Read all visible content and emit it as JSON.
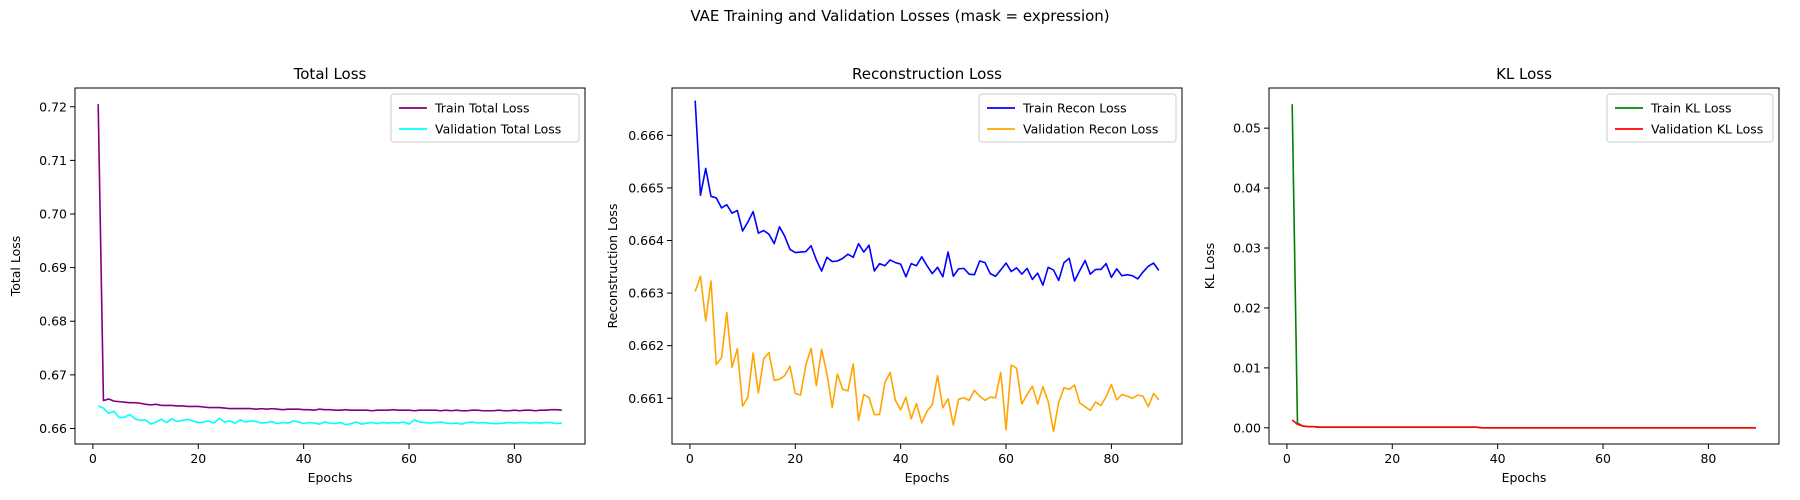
{
  "figure": {
    "suptitle": "VAE Training and Validation Losses (mask = expression)"
  },
  "chart_data": [
    {
      "type": "line",
      "title": "Total Loss",
      "xlabel": "Epochs",
      "ylabel": "Total Loss",
      "xlim": [
        -3.4,
        93.4
      ],
      "ylim": [
        0.6571,
        0.7235
      ],
      "xticks": [
        0,
        20,
        40,
        60,
        80
      ],
      "yticks": [
        0.66,
        0.67,
        0.68,
        0.69,
        0.7,
        0.71,
        0.72
      ],
      "ytick_labels": [
        "0.66",
        "0.67",
        "0.68",
        "0.69",
        "0.70",
        "0.71",
        "0.72"
      ],
      "legend_position": "top-right",
      "series": [
        {
          "name": "Train Total Loss",
          "color": "#800080",
          "x_start": 1,
          "values": [
            0.7205,
            0.6652,
            0.6655,
            0.6651,
            0.665,
            0.6649,
            0.6648,
            0.6648,
            0.6647,
            0.6645,
            0.6644,
            0.6645,
            0.6643,
            0.6643,
            0.6643,
            0.6642,
            0.6642,
            0.6641,
            0.6641,
            0.6641,
            0.664,
            0.6639,
            0.6639,
            0.6639,
            0.6638,
            0.6637,
            0.6637,
            0.6637,
            0.6637,
            0.6637,
            0.6636,
            0.6637,
            0.6636,
            0.6637,
            0.6636,
            0.6635,
            0.6636,
            0.6636,
            0.6636,
            0.6635,
            0.6635,
            0.6634,
            0.6636,
            0.6635,
            0.6635,
            0.6634,
            0.6634,
            0.6635,
            0.6634,
            0.6634,
            0.6634,
            0.6634,
            0.6633,
            0.6634,
            0.6634,
            0.6634,
            0.6635,
            0.6634,
            0.6634,
            0.6634,
            0.6633,
            0.6634,
            0.6634,
            0.6634,
            0.6634,
            0.6633,
            0.6634,
            0.6633,
            0.6634,
            0.6633,
            0.6633,
            0.6634,
            0.6634,
            0.6633,
            0.6633,
            0.6633,
            0.6634,
            0.6633,
            0.6633,
            0.6634,
            0.6633,
            0.6634,
            0.6634,
            0.6633,
            0.6634,
            0.6634,
            0.6635,
            0.6635,
            0.6634
          ]
        },
        {
          "name": "Validation Total Loss",
          "color": "#00ffff",
          "x_start": 1,
          "values": [
            0.6642,
            0.6638,
            0.6628,
            0.6632,
            0.662,
            0.6621,
            0.6626,
            0.6618,
            0.6615,
            0.6616,
            0.6608,
            0.6612,
            0.6617,
            0.6611,
            0.6618,
            0.6613,
            0.6615,
            0.6617,
            0.6614,
            0.6611,
            0.6612,
            0.6614,
            0.661,
            0.6619,
            0.6612,
            0.6614,
            0.661,
            0.6616,
            0.6612,
            0.6614,
            0.6613,
            0.661,
            0.6611,
            0.6613,
            0.6609,
            0.6611,
            0.661,
            0.6614,
            0.6612,
            0.6609,
            0.6611,
            0.661,
            0.6608,
            0.6612,
            0.661,
            0.6609,
            0.6611,
            0.6607,
            0.6609,
            0.6612,
            0.6608,
            0.661,
            0.6611,
            0.6609,
            0.6611,
            0.661,
            0.6611,
            0.661,
            0.6612,
            0.6608,
            0.6616,
            0.6612,
            0.6611,
            0.661,
            0.6611,
            0.6612,
            0.661,
            0.6609,
            0.661,
            0.6608,
            0.6611,
            0.6612,
            0.661,
            0.6611,
            0.661,
            0.6609,
            0.6609,
            0.661,
            0.6611,
            0.661,
            0.6611,
            0.6611,
            0.661,
            0.6611,
            0.661,
            0.6611,
            0.6611,
            0.6609,
            0.661
          ]
        }
      ]
    },
    {
      "type": "line",
      "title": "Reconstruction Loss",
      "xlabel": "Epochs",
      "ylabel": "Reconstruction Loss",
      "xlim": [
        -3.4,
        93.4
      ],
      "ylim": [
        0.66013,
        0.6669
      ],
      "xticks": [
        0,
        20,
        40,
        60,
        80
      ],
      "yticks": [
        0.661,
        0.662,
        0.663,
        0.664,
        0.665,
        0.666
      ],
      "ytick_labels": [
        "0.661",
        "0.662",
        "0.663",
        "0.664",
        "0.665",
        "0.666"
      ],
      "legend_position": "top-right",
      "series": [
        {
          "name": "Train Recon Loss",
          "color": "#0000ff",
          "x_start": 1,
          "values": [
            0.66666,
            0.66486,
            0.66537,
            0.66484,
            0.66481,
            0.66462,
            0.66468,
            0.66452,
            0.66457,
            0.66418,
            0.66435,
            0.66455,
            0.66414,
            0.66419,
            0.66412,
            0.66394,
            0.66426,
            0.66408,
            0.66383,
            0.66377,
            0.66378,
            0.66379,
            0.6639,
            0.66363,
            0.66342,
            0.66368,
            0.6636,
            0.66361,
            0.66366,
            0.66374,
            0.66368,
            0.66394,
            0.66378,
            0.66391,
            0.66342,
            0.66356,
            0.66352,
            0.66363,
            0.66358,
            0.66355,
            0.66331,
            0.66356,
            0.66352,
            0.66369,
            0.66352,
            0.66337,
            0.66349,
            0.66331,
            0.66378,
            0.66332,
            0.66346,
            0.66347,
            0.66336,
            0.66335,
            0.66361,
            0.66358,
            0.66337,
            0.66332,
            0.66344,
            0.66357,
            0.66341,
            0.66348,
            0.66336,
            0.66347,
            0.66326,
            0.66338,
            0.66315,
            0.66349,
            0.66344,
            0.66324,
            0.66358,
            0.66366,
            0.66323,
            0.66343,
            0.66362,
            0.66336,
            0.66345,
            0.66345,
            0.66356,
            0.6633,
            0.66346,
            0.66333,
            0.66335,
            0.66333,
            0.66327,
            0.6634,
            0.66351,
            0.66357,
            0.66343
          ]
        },
        {
          "name": "Validation Recon Loss",
          "color": "#ffa500",
          "x_start": 1,
          "values": [
            0.66303,
            0.66332,
            0.66247,
            0.66323,
            0.66164,
            0.66177,
            0.66263,
            0.66159,
            0.66194,
            0.66085,
            0.66102,
            0.66186,
            0.6611,
            0.66175,
            0.66187,
            0.66134,
            0.66136,
            0.66143,
            0.66161,
            0.66109,
            0.66106,
            0.66163,
            0.66195,
            0.66124,
            0.66193,
            0.66147,
            0.66083,
            0.66146,
            0.66117,
            0.66114,
            0.66165,
            0.66058,
            0.66107,
            0.66101,
            0.66069,
            0.66069,
            0.6613,
            0.66149,
            0.66096,
            0.66078,
            0.66102,
            0.66061,
            0.6609,
            0.66053,
            0.66075,
            0.66088,
            0.66143,
            0.66082,
            0.66099,
            0.66049,
            0.66098,
            0.66101,
            0.66096,
            0.66115,
            0.66104,
            0.66096,
            0.66102,
            0.66101,
            0.66149,
            0.6604,
            0.66163,
            0.66157,
            0.66089,
            0.66107,
            0.66123,
            0.66089,
            0.66122,
            0.66094,
            0.66037,
            0.66092,
            0.6612,
            0.66117,
            0.66125,
            0.66091,
            0.66084,
            0.66077,
            0.66093,
            0.66086,
            0.66103,
            0.66126,
            0.66097,
            0.66107,
            0.66104,
            0.661,
            0.66106,
            0.66104,
            0.66084,
            0.66109,
            0.66097
          ]
        }
      ]
    },
    {
      "type": "line",
      "title": "KL Loss",
      "xlabel": "Epochs",
      "ylabel": "KL Loss",
      "xlim": [
        -3.4,
        93.4
      ],
      "ylim": [
        -0.0027,
        0.0567
      ],
      "xticks": [
        0,
        20,
        40,
        60,
        80
      ],
      "yticks": [
        0.0,
        0.01,
        0.02,
        0.03,
        0.04,
        0.05
      ],
      "ytick_labels": [
        "0.00",
        "0.01",
        "0.02",
        "0.03",
        "0.04",
        "0.05"
      ],
      "legend_position": "top-right",
      "series": [
        {
          "name": "Train KL Loss",
          "color": "#008000",
          "x_start": 1,
          "values": [
            0.054,
            0.0008,
            0.0003,
            0.0002,
            0.0002,
            0.0001,
            0.0001,
            0.0001,
            0.0001,
            0.0001,
            0.0001,
            0.0001,
            0.0001,
            0.0001,
            0.0001,
            0.0001,
            0.0001,
            0.0001,
            0.0001,
            0.0001,
            0.0001,
            0.0001,
            0.0001,
            0.0001,
            0.0001,
            0.0001,
            0.0001,
            0.0001,
            0.0001,
            0.0001,
            0.0001,
            0.0001,
            0.0001,
            0.0001,
            0.0001,
            0.0001,
            0.0,
            0.0,
            0.0,
            0.0,
            0.0,
            0.0,
            0.0,
            0.0,
            0.0,
            0.0,
            0.0,
            0.0,
            0.0,
            0.0,
            0.0,
            0.0,
            0.0,
            0.0,
            0.0,
            0.0,
            0.0,
            0.0,
            0.0,
            0.0,
            0.0,
            0.0,
            0.0,
            0.0,
            0.0,
            0.0,
            0.0,
            0.0,
            0.0,
            0.0,
            0.0,
            0.0,
            0.0,
            0.0,
            0.0,
            0.0,
            0.0,
            0.0,
            0.0,
            0.0,
            0.0,
            0.0,
            0.0,
            0.0,
            0.0,
            0.0,
            0.0,
            0.0,
            0.0
          ]
        },
        {
          "name": "Validation KL Loss",
          "color": "#ff0000",
          "x_start": 1,
          "values": [
            0.0013,
            0.0006,
            0.0003,
            0.0002,
            0.0002,
            0.0001,
            0.0001,
            0.0001,
            0.0001,
            0.0001,
            0.0001,
            0.0001,
            0.0001,
            0.0001,
            0.0001,
            0.0001,
            0.0001,
            0.0001,
            0.0001,
            0.0001,
            0.0001,
            0.0001,
            0.0001,
            0.0001,
            0.0001,
            0.0001,
            0.0001,
            0.0001,
            0.0001,
            0.0001,
            0.0001,
            0.0001,
            0.0001,
            0.0001,
            0.0001,
            0.0001,
            0.0,
            0.0,
            0.0,
            0.0,
            0.0,
            0.0,
            0.0,
            0.0,
            0.0,
            0.0,
            0.0,
            0.0,
            0.0,
            0.0,
            0.0,
            0.0,
            0.0,
            0.0,
            0.0,
            0.0,
            0.0,
            0.0,
            0.0,
            0.0,
            0.0,
            0.0,
            0.0,
            0.0,
            0.0,
            0.0,
            0.0,
            0.0,
            0.0,
            0.0,
            0.0,
            0.0,
            0.0,
            0.0,
            0.0,
            0.0,
            0.0,
            0.0,
            0.0,
            0.0,
            0.0,
            0.0,
            0.0,
            0.0,
            0.0,
            0.0,
            0.0,
            0.0,
            0.0
          ]
        }
      ]
    }
  ]
}
